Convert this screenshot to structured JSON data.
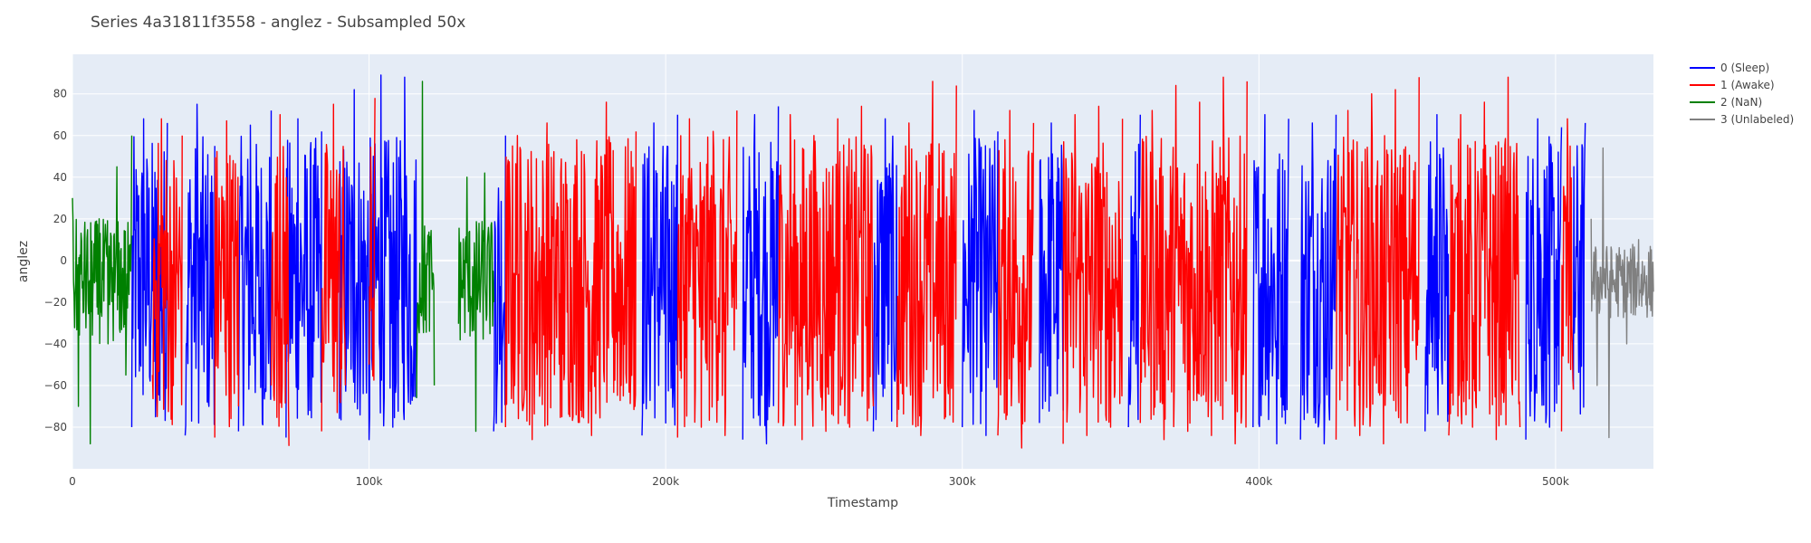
{
  "chart_data": {
    "type": "line",
    "title": "Series 4a31811f3558 - anglez - Subsampled 50x",
    "xlabel": "Timestamp",
    "ylabel": "anglez",
    "xlim": [
      0,
      533000
    ],
    "ylim": [
      -100,
      99
    ],
    "x_ticks": [
      {
        "value": 0,
        "label": "0"
      },
      {
        "value": 100000,
        "label": "100k"
      },
      {
        "value": 200000,
        "label": "200k"
      },
      {
        "value": 300000,
        "label": "300k"
      },
      {
        "value": 400000,
        "label": "400k"
      },
      {
        "value": 500000,
        "label": "500k"
      }
    ],
    "y_ticks": [
      {
        "value": -80,
        "label": "−80"
      },
      {
        "value": -60,
        "label": "−60"
      },
      {
        "value": -40,
        "label": "−40"
      },
      {
        "value": -20,
        "label": "−20"
      },
      {
        "value": 0,
        "label": "0"
      },
      {
        "value": 20,
        "label": "20"
      },
      {
        "value": 40,
        "label": "40"
      },
      {
        "value": 60,
        "label": "60"
      },
      {
        "value": 80,
        "label": "80"
      }
    ],
    "grid": true,
    "legend_position": "top-right",
    "series": [
      {
        "name": "0 (Sleep)",
        "color": "#0000ff",
        "segments": [
          {
            "x": [
              20000,
              24000,
              28000,
              32000
            ],
            "y": [
              -80,
              68,
              -75,
              66
            ]
          },
          {
            "x": [
              38000,
              42000,
              46000,
              48000
            ],
            "y": [
              -84,
              75,
              -70,
              55
            ]
          },
          {
            "x": [
              56000,
              60000,
              64000,
              67000
            ],
            "y": [
              -82,
              65,
              -78,
              72
            ]
          },
          {
            "x": [
              72000,
              76000,
              80000,
              84000
            ],
            "y": [
              -85,
              68,
              -72,
              62
            ]
          },
          {
            "x": [
              90000,
              95000,
              100000,
              104000,
              108000,
              112000,
              116000
            ],
            "y": [
              -76,
              82,
              -86,
              89,
              -80,
              88,
              -66
            ]
          },
          {
            "x": [
              142000,
              146000
            ],
            "y": [
              -82,
              60
            ]
          },
          {
            "x": [
              192000,
              196000,
              200000,
              204000
            ],
            "y": [
              -84,
              66,
              -78,
              70
            ]
          },
          {
            "x": [
              226000,
              230000,
              234000,
              238000
            ],
            "y": [
              -86,
              70,
              -88,
              74
            ]
          },
          {
            "x": [
              270000,
              274000,
              278000
            ],
            "y": [
              -82,
              68,
              -74
            ]
          },
          {
            "x": [
              300000,
              304000,
              308000,
              312000
            ],
            "y": [
              -80,
              72,
              -84,
              62
            ]
          },
          {
            "x": [
              326000,
              330000,
              334000
            ],
            "y": [
              -78,
              66,
              -72
            ]
          },
          {
            "x": [
              356000,
              360000
            ],
            "y": [
              -80,
              70
            ]
          },
          {
            "x": [
              398000,
              402000,
              406000,
              410000
            ],
            "y": [
              -80,
              70,
              -88,
              68
            ]
          },
          {
            "x": [
              414000,
              418000,
              422000,
              426000
            ],
            "y": [
              -86,
              66,
              -88,
              70
            ]
          },
          {
            "x": [
              456000,
              460000,
              464000
            ],
            "y": [
              -82,
              70,
              -74
            ]
          },
          {
            "x": [
              490000,
              494000,
              498000,
              502000
            ],
            "y": [
              -86,
              68,
              -80,
              64
            ]
          },
          {
            "x": [
              506000,
              510000
            ],
            "y": [
              -62,
              66
            ]
          }
        ]
      },
      {
        "name": "1 (Awake)",
        "color": "#ff0000",
        "segments": [
          {
            "x": [
              27000,
              30000,
              34000,
              37000
            ],
            "y": [
              -55,
              68,
              -60,
              60
            ]
          },
          {
            "x": [
              48000,
              52000,
              56000
            ],
            "y": [
              -85,
              67,
              -70
            ]
          },
          {
            "x": [
              67000,
              70000,
              73000
            ],
            "y": [
              -60,
              70,
              -89
            ]
          },
          {
            "x": [
              84000,
              88000,
              92000
            ],
            "y": [
              -82,
              75,
              -60
            ]
          },
          {
            "x": [
              100000,
              102000
            ],
            "y": [
              -50,
              78
            ]
          },
          {
            "x": [
              146000,
              150000,
              155000,
              160000,
              165000,
              170000,
              175000,
              180000,
              185000,
              190000
            ],
            "y": [
              -80,
              60,
              -86,
              66,
              -75,
              58,
              -84,
              76,
              -60,
              62
            ]
          },
          {
            "x": [
              204000,
              208000,
              212000,
              216000,
              220000,
              224000
            ],
            "y": [
              -85,
              68,
              -80,
              62,
              -84,
              72
            ]
          },
          {
            "x": [
              238000,
              242000,
              246000,
              250000,
              254000,
              258000,
              262000,
              266000,
              270000
            ],
            "y": [
              -78,
              70,
              -86,
              60,
              -82,
              68,
              -80,
              74,
              -70
            ]
          },
          {
            "x": [
              278000,
              282000,
              286000,
              290000,
              294000,
              298000
            ],
            "y": [
              -80,
              66,
              -84,
              86,
              -76,
              84
            ]
          },
          {
            "x": [
              312000,
              316000,
              320000,
              324000
            ],
            "y": [
              -84,
              72,
              -90,
              66
            ]
          },
          {
            "x": [
              334000,
              338000,
              342000,
              346000,
              350000,
              354000
            ],
            "y": [
              -88,
              70,
              -84,
              74,
              -80,
              68
            ]
          },
          {
            "x": [
              360000,
              364000,
              368000,
              372000,
              376000,
              380000,
              384000,
              388000,
              392000,
              396000
            ],
            "y": [
              -78,
              72,
              -86,
              84,
              -82,
              76,
              -84,
              88,
              -88,
              86
            ]
          },
          {
            "x": [
              426000,
              430000,
              434000,
              438000,
              442000,
              446000,
              450000,
              454000
            ],
            "y": [
              -86,
              72,
              -84,
              80,
              -88,
              82,
              -78,
              88
            ]
          },
          {
            "x": [
              464000,
              468000,
              472000,
              476000,
              480000,
              484000,
              488000
            ],
            "y": [
              -84,
              70,
              -80,
              76,
              -86,
              88,
              -80
            ]
          },
          {
            "x": [
              502000,
              504000,
              506000
            ],
            "y": [
              -82,
              68,
              -62
            ]
          }
        ]
      },
      {
        "name": "2 (NaN)",
        "color": "#008000",
        "segments": [
          {
            "x": [
              0,
              2000,
              4000,
              6000,
              9000,
              12000,
              15000,
              18000,
              20000
            ],
            "y": [
              30,
              -70,
              10,
              -88,
              20,
              -40,
              45,
              -55,
              60
            ]
          },
          {
            "x": [
              116000,
              118000,
              120000,
              122000
            ],
            "y": [
              -66,
              86,
              10,
              -60
            ]
          },
          {
            "x": [
              130000,
              133000,
              136000,
              139000,
              142000
            ],
            "y": [
              -30,
              40,
              -82,
              42,
              -20
            ]
          }
        ]
      },
      {
        "name": "3 (Unlabeled)",
        "color": "#808080",
        "segments": [
          {
            "x": [
              512000,
              514000,
              516000,
              518000,
              520000,
              524000,
              528000,
              533000
            ],
            "y": [
              20,
              -60,
              54,
              -85,
              -15,
              -40,
              10,
              -15
            ]
          }
        ]
      }
    ]
  }
}
